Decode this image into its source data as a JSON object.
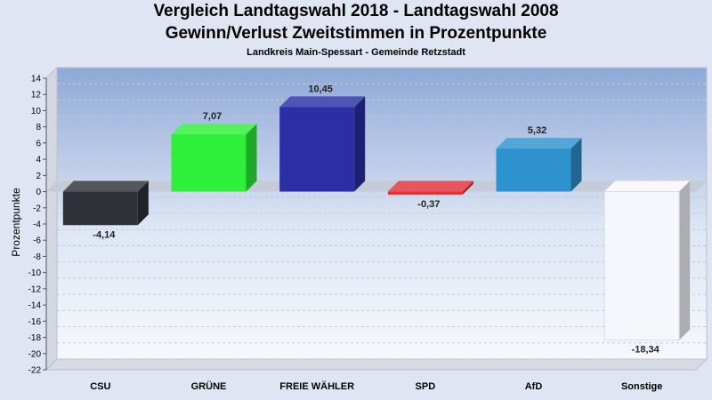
{
  "chart_data": {
    "type": "bar",
    "title": "Vergleich Landtagswahl 2018 - Landtagswahl 2008",
    "title_line2": "Gewinn/Verlust Zweitstimmen in Prozentpunkte",
    "subtitle": "Landkreis Main-Spessart - Gemeinde Retzstadt",
    "xlabel": "",
    "ylabel": "Prozentpunkte",
    "ylim": [
      -22,
      14
    ],
    "yticks": [
      14,
      12,
      10,
      8,
      6,
      4,
      2,
      0,
      -2,
      -4,
      -6,
      -8,
      -10,
      -12,
      -14,
      -16,
      -18,
      -20,
      -22
    ],
    "categories": [
      "CSU",
      "GRÜNE",
      "FREIE WÄHLER",
      "SPD",
      "AfD",
      "Sonstige"
    ],
    "values": [
      -4.14,
      7.07,
      10.45,
      -0.37,
      5.32,
      -18.34
    ],
    "value_labels": [
      "-4,14",
      "7,07",
      "10,45",
      "-0,37",
      "5,32",
      "-18,34"
    ],
    "colors": [
      "#2e3138",
      "#2ef03a",
      "#2a2fa6",
      "#e0313a",
      "#2e92cf",
      "#f6f7fd"
    ],
    "grid": true,
    "legend": "none"
  }
}
